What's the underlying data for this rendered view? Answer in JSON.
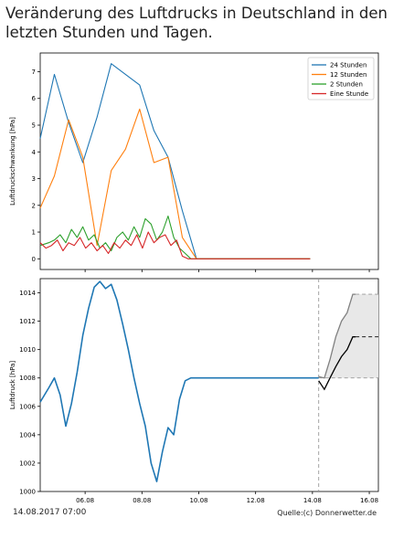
{
  "title": "Veränderung des Luftdrucks in Deutschland in den letzten Stunden und Tagen.",
  "footer": {
    "date": "14.08.2017 07:00",
    "source": "Quelle:(c) Donnerwetter.de"
  },
  "colors": {
    "s24": "#1f77b4",
    "s12": "#ff7f0e",
    "s2": "#2ca02c",
    "s1": "#d62728",
    "pressure": "#1f77b4",
    "forecast_mid": "#000000",
    "forecast_band": "#808080"
  },
  "chart_data": [
    {
      "type": "line",
      "title": "",
      "xlabel": "",
      "ylabel": "Luftdruckschwankung [hPa]",
      "xlim": [
        4.5,
        16.4
      ],
      "ylim": [
        -0.4,
        7.7
      ],
      "yticks": [
        0,
        1,
        2,
        3,
        4,
        5,
        6,
        7
      ],
      "legend": "top-right",
      "series": [
        {
          "name": "24 Stunden",
          "color_key": "s24",
          "x": [
            4.5,
            5.0,
            5.5,
            6.0,
            6.5,
            7.0,
            7.5,
            8.0,
            8.5,
            9.0,
            9.5,
            10.0,
            14.0
          ],
          "y": [
            4.5,
            6.9,
            5.1,
            3.6,
            5.3,
            7.3,
            6.9,
            6.5,
            4.8,
            3.8,
            1.8,
            0.0,
            0.0
          ]
        },
        {
          "name": "12 Stunden",
          "color_key": "s12",
          "x": [
            4.5,
            5.0,
            5.5,
            6.0,
            6.5,
            7.0,
            7.5,
            8.0,
            8.5,
            9.0,
            9.5,
            10.0,
            14.0
          ],
          "y": [
            1.9,
            3.1,
            5.2,
            3.8,
            0.5,
            3.3,
            4.1,
            5.6,
            3.6,
            3.8,
            0.8,
            0.0,
            0.0
          ]
        },
        {
          "name": "2 Stunden",
          "color_key": "s2",
          "x": [
            4.5,
            4.8,
            5.0,
            5.2,
            5.4,
            5.6,
            5.8,
            6.0,
            6.2,
            6.4,
            6.6,
            6.8,
            7.0,
            7.2,
            7.4,
            7.6,
            7.8,
            8.0,
            8.2,
            8.4,
            8.6,
            8.8,
            9.0,
            9.2,
            9.4,
            9.6,
            9.8,
            10.0,
            14.0
          ],
          "y": [
            0.5,
            0.6,
            0.7,
            0.9,
            0.6,
            1.1,
            0.8,
            1.2,
            0.7,
            0.9,
            0.4,
            0.6,
            0.3,
            0.8,
            1.0,
            0.7,
            1.2,
            0.8,
            1.5,
            1.3,
            0.7,
            1.0,
            1.6,
            0.8,
            0.4,
            0.2,
            0.0,
            0.0,
            0.0
          ]
        },
        {
          "name": "Eine Stunde",
          "color_key": "s1",
          "x": [
            4.5,
            4.7,
            4.9,
            5.1,
            5.3,
            5.5,
            5.7,
            5.9,
            6.1,
            6.3,
            6.5,
            6.7,
            6.9,
            7.1,
            7.3,
            7.5,
            7.7,
            7.9,
            8.1,
            8.3,
            8.5,
            8.7,
            8.9,
            9.1,
            9.3,
            9.5,
            9.7,
            10.0,
            14.0
          ],
          "y": [
            0.6,
            0.4,
            0.5,
            0.7,
            0.3,
            0.6,
            0.5,
            0.8,
            0.4,
            0.6,
            0.3,
            0.5,
            0.2,
            0.6,
            0.4,
            0.7,
            0.5,
            0.9,
            0.4,
            1.0,
            0.6,
            0.8,
            0.9,
            0.5,
            0.7,
            0.1,
            0.0,
            0.0,
            0.0
          ]
        }
      ]
    },
    {
      "type": "line",
      "title": "",
      "xlabel": "",
      "ylabel": "Luftdruck [hPa]",
      "xlim": [
        4.5,
        16.4
      ],
      "ylim": [
        1000,
        1015
      ],
      "yticks": [
        1000,
        1002,
        1004,
        1006,
        1008,
        1010,
        1012,
        1014
      ],
      "xtick_values": [
        6.08,
        8.08,
        10.08,
        12.08,
        14.08,
        16.08
      ],
      "xtick_labels": [
        "06.08",
        "08.08",
        "10.08",
        "12.08",
        "14.08",
        "16.08"
      ],
      "now_x": 14.3,
      "series": [
        {
          "name": "",
          "color_key": "pressure",
          "x": [
            4.5,
            4.8,
            5.0,
            5.2,
            5.4,
            5.6,
            5.8,
            6.0,
            6.2,
            6.4,
            6.6,
            6.8,
            7.0,
            7.2,
            7.4,
            7.6,
            7.8,
            8.0,
            8.2,
            8.4,
            8.6,
            8.8,
            9.0,
            9.2,
            9.4,
            9.6,
            9.8,
            10.0,
            14.3
          ],
          "y": [
            1006.3,
            1007.3,
            1008.0,
            1006.8,
            1004.6,
            1006.2,
            1008.4,
            1011.0,
            1012.9,
            1014.4,
            1014.8,
            1014.3,
            1014.6,
            1013.5,
            1011.8,
            1010.0,
            1008.0,
            1006.2,
            1004.6,
            1002.0,
            1000.7,
            1002.8,
            1004.5,
            1004.0,
            1006.5,
            1007.8,
            1008.0,
            1008.0,
            1008.0
          ]
        }
      ],
      "forecast": {
        "mid": {
          "x": [
            14.3,
            14.5,
            14.7,
            14.9,
            15.1,
            15.3,
            15.5,
            15.6,
            16.4
          ],
          "y": [
            1007.8,
            1007.2,
            1008.0,
            1008.8,
            1009.5,
            1010.0,
            1010.9,
            1010.9,
            1010.9
          ]
        },
        "upper": {
          "x": [
            14.3,
            14.5,
            14.7,
            14.9,
            15.1,
            15.3,
            15.5,
            15.6,
            16.4
          ],
          "y": [
            1008.1,
            1008.0,
            1009.3,
            1010.9,
            1012.0,
            1012.6,
            1013.9,
            1013.9,
            1013.9
          ]
        },
        "lower_dashed_y": 1008.0
      }
    }
  ]
}
